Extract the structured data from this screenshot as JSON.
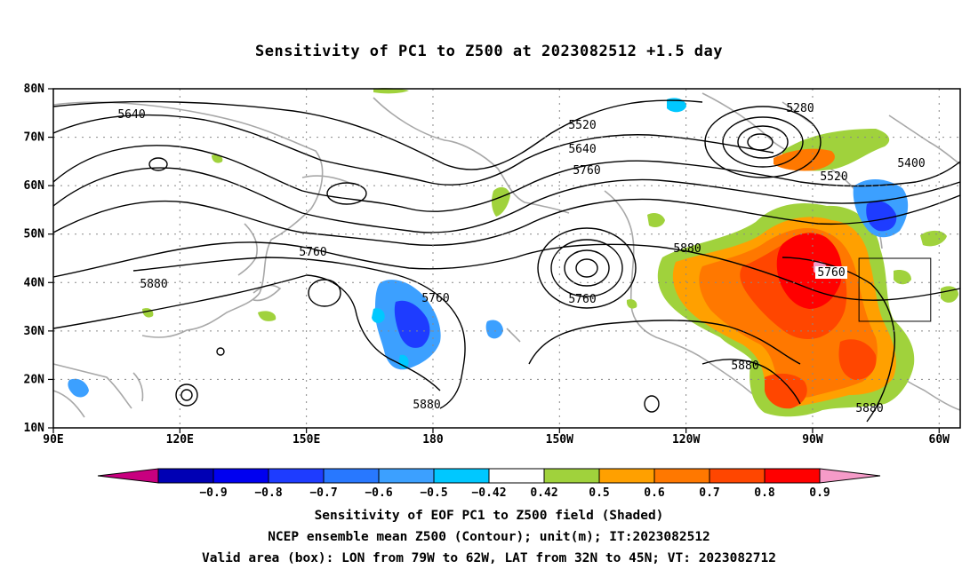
{
  "title": "Sensitivity of PC1 to Z500 at 2023082512 +1.5 day",
  "axes": {
    "lat_labels": [
      "80N",
      "70N",
      "60N",
      "50N",
      "40N",
      "30N",
      "20N",
      "10N"
    ],
    "lon_labels": [
      "90E",
      "120E",
      "150E",
      "180",
      "150W",
      "120W",
      "90W",
      "60W"
    ]
  },
  "contour_labels": [
    "5640",
    "5520",
    "5640",
    "5760",
    "5280",
    "5400",
    "5520",
    "5880",
    "5760",
    "5880",
    "5760",
    "5760",
    "5760",
    "5880",
    "5880",
    "5880"
  ],
  "colorbar": {
    "colors": [
      "#c8007f",
      "#0000b4",
      "#0000f0",
      "#1e3cff",
      "#2878ff",
      "#3ca0ff",
      "#00c8ff",
      "#ffffff",
      "#a0d23c",
      "#ffa000",
      "#ff7800",
      "#ff4600",
      "#ff0000",
      "#f59bc8"
    ],
    "labels": [
      "−0.9",
      "−0.8",
      "−0.7",
      "−0.6",
      "−0.5",
      "−0.42",
      "0.42",
      "0.5",
      "0.6",
      "0.7",
      "0.8",
      "0.9"
    ]
  },
  "valid_box": {
    "lon_min": -79,
    "lon_max": -62,
    "lat_min": 32,
    "lat_max": 45
  },
  "footer": {
    "line1": "Sensitivity of EOF PC1 to Z500 field (Shaded)",
    "line2": "NCEP ensemble mean Z500 (Contour); unit(m); IT:2023082512",
    "line3": "Valid area (box): LON from 79W to 62W, LAT from 32N to 45N; VT: 2023082712"
  }
}
